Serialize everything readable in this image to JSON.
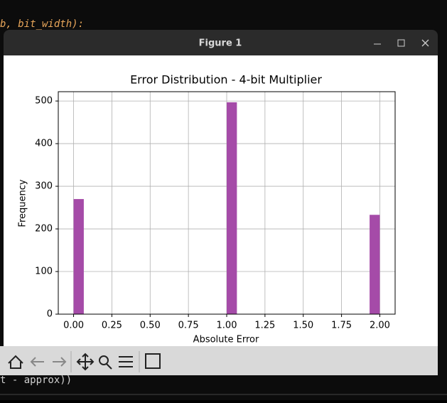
{
  "background_code": {
    "line_top": "b, bit_width):",
    "line_bottom": "t - approx))"
  },
  "window": {
    "title": "Figure 1"
  },
  "chart_data": {
    "type": "histogram",
    "title": "Error Distribution - 4-bit Multiplier",
    "x_label": "Absolute Error",
    "y_label": "Frequency",
    "bins": [
      0,
      0.066667,
      0.133333,
      0.2,
      0.266667,
      0.333333,
      0.4,
      0.466667,
      0.533333,
      0.6,
      0.666667,
      0.733333,
      0.8,
      0.866667,
      0.933333,
      1.0,
      1.066667,
      1.133333,
      1.2,
      1.266667,
      1.333333,
      1.4,
      1.466667,
      1.533333,
      1.6,
      1.666667,
      1.733333,
      1.8,
      1.866667,
      1.933333,
      2.0
    ],
    "counts": [
      270,
      0,
      0,
      0,
      0,
      0,
      0,
      0,
      0,
      0,
      0,
      0,
      0,
      0,
      0,
      497,
      0,
      0,
      0,
      0,
      0,
      0,
      0,
      0,
      0,
      0,
      0,
      0,
      0,
      233
    ],
    "color": "#a54ba8",
    "xlim": [
      -0.1,
      2.1
    ],
    "xticks": [
      {
        "value": 0,
        "label": "0.00"
      },
      {
        "value": 0.25,
        "label": "0.25"
      },
      {
        "value": 0.5,
        "label": "0.50"
      },
      {
        "value": 0.75,
        "label": "0.75"
      },
      {
        "value": 1,
        "label": "1.00"
      },
      {
        "value": 1.25,
        "label": "1.25"
      },
      {
        "value": 1.5,
        "label": "1.50"
      },
      {
        "value": 1.75,
        "label": "1.75"
      },
      {
        "value": 2,
        "label": "2.00"
      }
    ],
    "ylim": [
      0,
      521.85
    ],
    "yticks": [
      0,
      100,
      200,
      300,
      400,
      500
    ],
    "grid": true
  }
}
